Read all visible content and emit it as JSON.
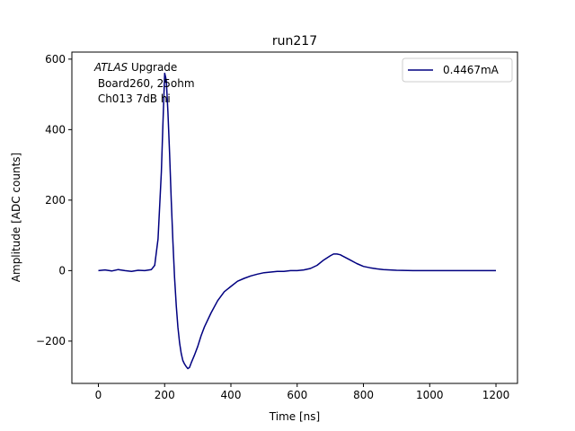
{
  "chart_data": {
    "type": "line",
    "title": "run217",
    "xlabel": "Time [ns]",
    "ylabel": "Amplitude [ADC counts]",
    "xlim": [
      -80,
      1265
    ],
    "ylim": [
      -320,
      620
    ],
    "xticks": [
      0,
      200,
      400,
      600,
      800,
      1000,
      1200
    ],
    "yticks": [
      -200,
      0,
      200,
      400,
      600
    ],
    "xtick_labels": [
      "0",
      "200",
      "400",
      "600",
      "800",
      "1000",
      "1200"
    ],
    "ytick_labels": [
      "−200",
      "0",
      "200",
      "400",
      "600"
    ],
    "grid": false,
    "legend_position": "top-right",
    "annotation": {
      "italic": "ATLAS",
      "rest": " Upgrade",
      "line2": " Board260, 25ohm",
      "line3": " Ch013 7dB hi"
    },
    "series": [
      {
        "name": "0.4467mA",
        "color": "#000080",
        "x": [
          0,
          20,
          40,
          60,
          80,
          100,
          120,
          140,
          160,
          170,
          180,
          190,
          195,
          200,
          205,
          210,
          215,
          220,
          225,
          230,
          235,
          240,
          245,
          250,
          255,
          260,
          265,
          270,
          275,
          280,
          290,
          300,
          310,
          320,
          340,
          360,
          380,
          400,
          420,
          440,
          460,
          480,
          500,
          520,
          540,
          560,
          580,
          600,
          620,
          640,
          660,
          680,
          700,
          710,
          720,
          730,
          740,
          760,
          780,
          800,
          820,
          840,
          860,
          880,
          900,
          950,
          1000,
          1050,
          1100,
          1150,
          1200
        ],
        "y": [
          0,
          2,
          -1,
          3,
          0,
          -2,
          1,
          0,
          3,
          15,
          90,
          280,
          420,
          560,
          540,
          450,
          330,
          200,
          80,
          -20,
          -100,
          -160,
          -205,
          -235,
          -255,
          -265,
          -272,
          -278,
          -275,
          -262,
          -240,
          -215,
          -185,
          -160,
          -120,
          -85,
          -60,
          -45,
          -30,
          -22,
          -15,
          -10,
          -6,
          -4,
          -2,
          -2,
          0,
          0,
          2,
          6,
          15,
          30,
          42,
          47,
          47,
          45,
          40,
          30,
          20,
          12,
          8,
          5,
          3,
          2,
          1,
          0,
          0,
          0,
          0,
          0,
          0
        ]
      }
    ]
  }
}
